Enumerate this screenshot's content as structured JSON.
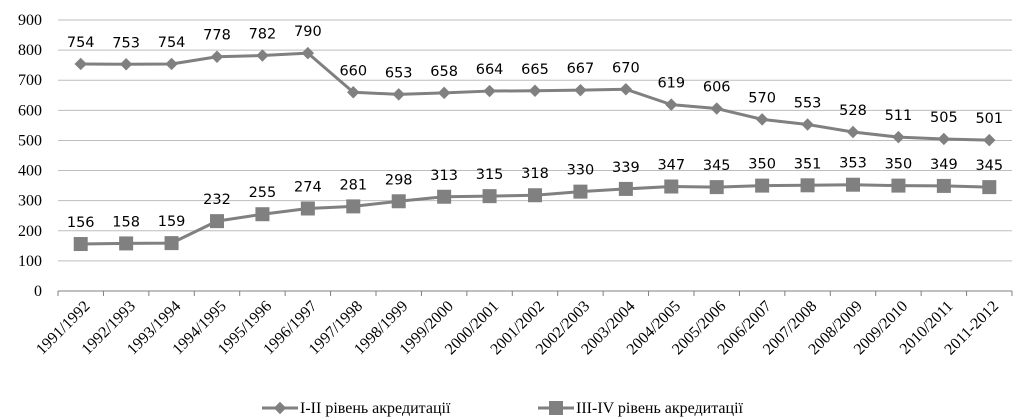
{
  "chart_data": {
    "type": "line",
    "categories": [
      "1991/1992",
      "1992/1993",
      "1993/1994",
      "1994/1995",
      "1995/1996",
      "1996/1997",
      "1997/1998",
      "1998/1999",
      "1999/2000",
      "2000/2001",
      "2001/2002",
      "2002/2003",
      "2003/2004",
      "2004/2005",
      "2005/2006",
      "2006/2007",
      "2007/2008",
      "2008/2009",
      "2009/2010",
      "2010/2011",
      "2011-2012"
    ],
    "series": [
      {
        "name": "І-ІІ рівень акредитації",
        "marker": "diamond",
        "color": "#808080",
        "values": [
          754,
          753,
          754,
          778,
          782,
          790,
          660,
          653,
          658,
          664,
          665,
          667,
          670,
          619,
          606,
          570,
          553,
          528,
          511,
          505,
          501
        ]
      },
      {
        "name": "ІІІ-ІV рівень акредитації",
        "marker": "square",
        "color": "#808080",
        "values": [
          156,
          158,
          159,
          232,
          255,
          274,
          281,
          298,
          313,
          315,
          318,
          330,
          339,
          347,
          345,
          350,
          351,
          353,
          350,
          349,
          345
        ]
      }
    ],
    "yticks": [
      0,
      100,
      200,
      300,
      400,
      500,
      600,
      700,
      800,
      900
    ],
    "ylim": [
      0,
      900
    ],
    "title": "",
    "xlabel": "",
    "ylabel": "",
    "grid": true,
    "legend_position": "bottom"
  }
}
